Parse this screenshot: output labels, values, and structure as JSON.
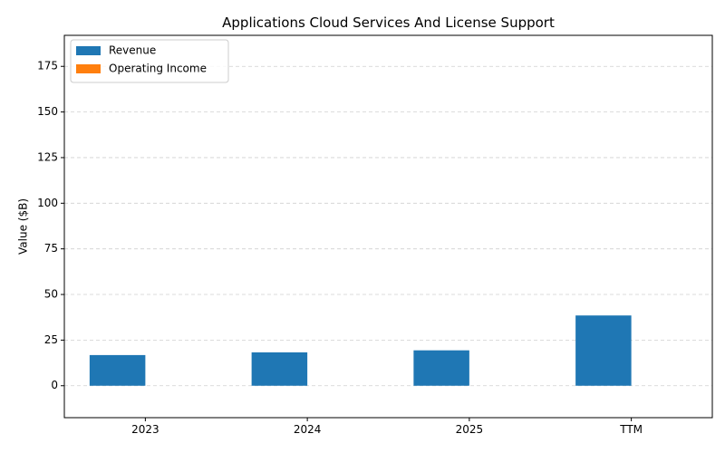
{
  "chart_data": {
    "type": "bar",
    "title": "Applications Cloud Services And License Support",
    "xlabel": "",
    "ylabel": "Value ($B)",
    "categories": [
      "2023",
      "2024",
      "2025",
      "TTM"
    ],
    "series": [
      {
        "name": "Revenue",
        "values": [
          16.8,
          18.3,
          19.4,
          38.5
        ],
        "color": "#1f77b4"
      },
      {
        "name": "Operating Income",
        "values": [
          0,
          0,
          0,
          0
        ],
        "color": "#ff7f0e"
      }
    ],
    "ylim": [
      -17.5,
      192
    ],
    "yticks": [
      0,
      25,
      50,
      75,
      100,
      125,
      150,
      175
    ],
    "grid": "y-dashed",
    "legend": "top-left"
  }
}
